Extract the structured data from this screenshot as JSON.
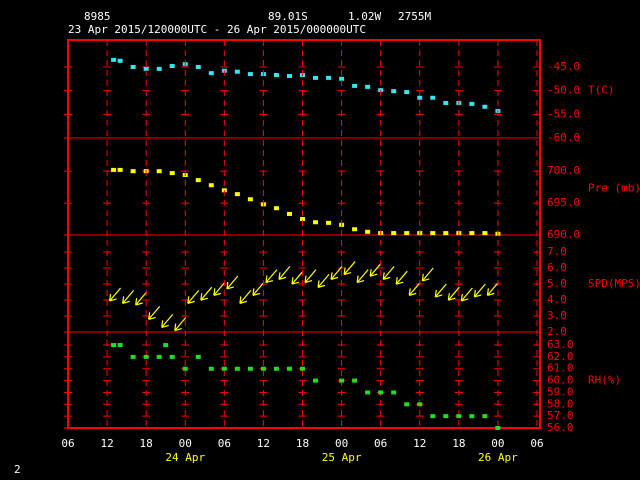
{
  "header": {
    "station": "8985",
    "latitude": "89.01S",
    "longitude": "1.02W",
    "elevation": "2755M",
    "period": "23 Apr 2015/120000UTC - 26 Apr 2015/000000UTC"
  },
  "footer": "2",
  "chart_data": [
    {
      "type": "scatter",
      "ylabel": "T(C)",
      "color": "#33e6f2",
      "xlim": [
        6,
        78
      ],
      "ylim": [
        -60,
        -39.3
      ],
      "yticks": [
        {
          "value": -45,
          "label": "-45.0"
        },
        {
          "value": -50,
          "label": "-50.0"
        },
        {
          "value": -55,
          "label": "-55.0"
        },
        {
          "value": -60,
          "label": "-60.0"
        }
      ],
      "x": [
        13,
        14,
        16,
        18,
        20,
        22,
        24,
        26,
        28,
        30,
        32,
        34,
        36,
        38,
        40,
        42,
        44,
        46,
        48,
        50,
        52,
        54,
        56,
        58,
        60,
        62,
        64,
        66,
        68,
        70,
        72
      ],
      "values": [
        -43.5,
        -43.7,
        -45.0,
        -45.4,
        -45.4,
        -44.8,
        -44.4,
        -45.0,
        -46.3,
        -45.8,
        -46.0,
        -46.5,
        -46.5,
        -46.7,
        -46.9,
        -46.7,
        -47.3,
        -47.3,
        -47.5,
        -49.0,
        -49.2,
        -49.9,
        -50.1,
        -50.3,
        -51.5,
        -51.5,
        -52.6,
        -52.6,
        -52.8,
        -53.4,
        -54.3
      ]
    },
    {
      "type": "scatter",
      "ylabel": "Pre (mb)",
      "color": "#ffff00",
      "xlim": [
        6,
        78
      ],
      "ylim": [
        690,
        705.2
      ],
      "yticks": [
        {
          "value": 700,
          "label": "700.0"
        },
        {
          "value": 695,
          "label": "695.0"
        },
        {
          "value": 690,
          "label": "690.0"
        }
      ],
      "x": [
        13,
        14,
        16,
        18,
        20,
        22,
        24,
        26,
        28,
        30,
        32,
        34,
        36,
        38,
        40,
        42,
        44,
        46,
        48,
        50,
        52,
        54,
        56,
        58,
        60,
        62,
        64,
        66,
        68,
        70,
        72
      ],
      "values": [
        700.2,
        700.2,
        700.0,
        700.0,
        700.0,
        699.7,
        699.4,
        698.6,
        697.8,
        697.0,
        696.4,
        695.6,
        694.8,
        694.2,
        693.3,
        692.5,
        692.0,
        691.9,
        691.6,
        690.9,
        690.5,
        690.3,
        690.3,
        690.3,
        690.3,
        690.3,
        690.3,
        690.3,
        690.3,
        690.3,
        690.2
      ]
    },
    {
      "type": "wind",
      "ylabel": "SPD(MPS)",
      "color": "#ffff00",
      "xlim": [
        6,
        78
      ],
      "ylim": [
        2,
        8.06
      ],
      "yticks": [
        {
          "value": 7,
          "label": "7.0"
        },
        {
          "value": 6,
          "label": "6.0"
        },
        {
          "value": 5,
          "label": "5.0"
        },
        {
          "value": 4,
          "label": "4.0"
        },
        {
          "value": 3,
          "label": "3.0"
        },
        {
          "value": 2,
          "label": "2.0"
        }
      ],
      "x": [
        13,
        15,
        17,
        19,
        21,
        23,
        25,
        27,
        29,
        31,
        33,
        35,
        37,
        39,
        41,
        43,
        45,
        47,
        49,
        51,
        53,
        55,
        57,
        59,
        61,
        63,
        65,
        67,
        69,
        71
      ],
      "values": [
        4.25,
        4.1,
        4.0,
        3.1,
        2.6,
        2.4,
        4.1,
        4.3,
        4.6,
        5.0,
        4.1,
        4.6,
        5.4,
        5.6,
        5.3,
        5.4,
        5.1,
        5.6,
        5.9,
        5.4,
        5.8,
        5.6,
        5.3,
        4.6,
        5.5,
        4.5,
        4.3,
        4.25,
        4.5,
        4.6
      ]
    },
    {
      "type": "scatter",
      "ylabel": "RH(%)",
      "color": "#22dd22",
      "xlim": [
        6,
        78
      ],
      "ylim": [
        56,
        64.1
      ],
      "yticks": [
        {
          "value": 63,
          "label": "63.0"
        },
        {
          "value": 62,
          "label": "62.0"
        },
        {
          "value": 61,
          "label": "61.0"
        },
        {
          "value": 60,
          "label": "60.0"
        },
        {
          "value": 59,
          "label": "59.0"
        },
        {
          "value": 58,
          "label": "58.0"
        },
        {
          "value": 57,
          "label": "57.0"
        },
        {
          "value": 56,
          "label": "56.0"
        }
      ],
      "x": [
        13,
        14,
        16,
        18,
        20,
        21,
        22,
        24,
        26,
        28,
        30,
        32,
        34,
        36,
        38,
        40,
        42,
        44,
        48,
        50,
        52,
        54,
        56,
        58,
        60,
        62,
        64,
        66,
        68,
        70,
        72
      ],
      "values": [
        63.0,
        63.0,
        62.0,
        62.0,
        62.0,
        63.0,
        62.0,
        61.0,
        62.0,
        61.0,
        61.0,
        61.0,
        61.0,
        61.0,
        61.0,
        61.0,
        61.0,
        60.0,
        60.0,
        60.0,
        59.0,
        59.0,
        59.0,
        58.0,
        58.0,
        57.0,
        57.0,
        57.0,
        57.0,
        57.0,
        56.0
      ],
      "xticks": [
        {
          "value": 6,
          "label": "06"
        },
        {
          "value": 12,
          "label": "12"
        },
        {
          "value": 18,
          "label": "18"
        },
        {
          "value": 24,
          "label": "00"
        },
        {
          "value": 30,
          "label": "06"
        },
        {
          "value": 36,
          "label": "12"
        },
        {
          "value": 42,
          "label": "18"
        },
        {
          "value": 48,
          "label": "00"
        },
        {
          "value": 54,
          "label": "06"
        },
        {
          "value": 60,
          "label": "12"
        },
        {
          "value": 66,
          "label": "18"
        },
        {
          "value": 72,
          "label": "00"
        },
        {
          "value": 78,
          "label": "06"
        }
      ],
      "xdates": [
        {
          "value": 24,
          "label": "24 Apr"
        },
        {
          "value": 48,
          "label": "25 Apr"
        },
        {
          "value": 72,
          "label": "26 Apr"
        }
      ]
    }
  ]
}
